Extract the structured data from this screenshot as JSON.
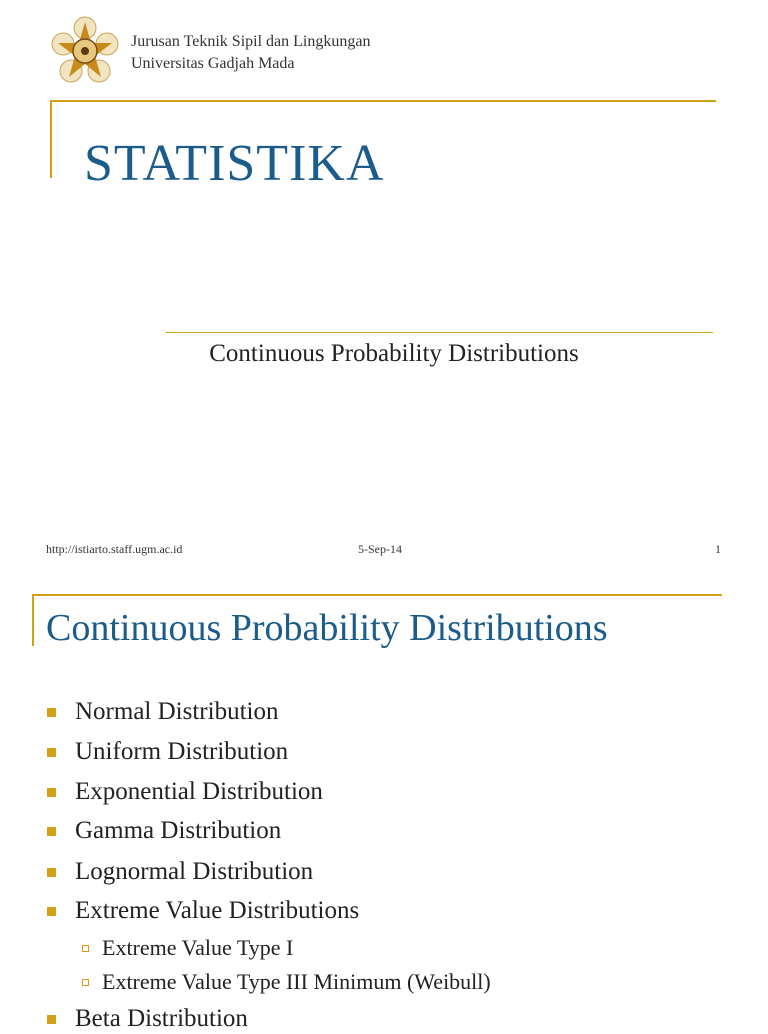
{
  "slide1": {
    "logo": "ugm-seal-logo",
    "department": "Jurusan Teknik Sipil dan Lingkungan",
    "university": "Universitas Gadjah Mada",
    "title": "STATISTIKA",
    "subtitle": "Continuous Probability Distributions",
    "footer": {
      "url": "http://istiarto.staff.ugm.ac.id",
      "date": "5-Sep-14",
      "page": "1"
    }
  },
  "slide2": {
    "title": "Continuous Probability Distributions",
    "bullets": [
      "Normal Distribution",
      "Uniform Distribution",
      "Exponential Distribution",
      "Gamma Distribution",
      "Lognormal Distribution",
      "Extreme Value Distributions"
    ],
    "sub_bullets": [
      "Extreme Value Type I",
      "Extreme Value Type III Minimum (Weibull)"
    ],
    "last_bullet": "Beta Distribution"
  },
  "colors": {
    "accent": "#d4a017",
    "title": "#1b5c8a"
  }
}
